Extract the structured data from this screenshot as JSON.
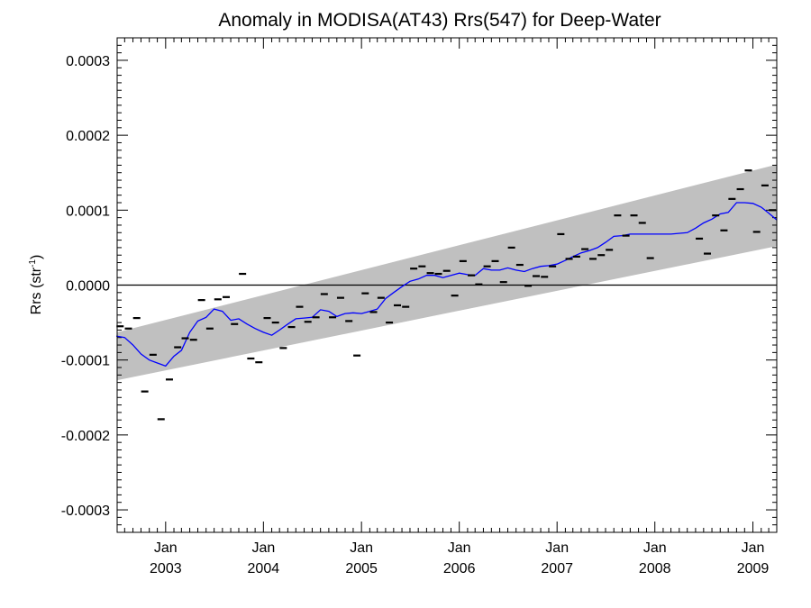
{
  "chart_data": {
    "type": "scatter",
    "title": "Anomaly in MODISA(AT43) Rrs(547) for Deep-Water",
    "xlabel": "",
    "ylabel": {
      "main": "Rrs (str",
      "superscript": "-1",
      "close": ")"
    },
    "x_axis": {
      "type": "time",
      "range": [
        "2002-07-04",
        "2009-03-31"
      ],
      "ticks": [
        {
          "date": "2003-01-01",
          "month": "Jan",
          "year": "2003"
        },
        {
          "date": "2004-01-01",
          "month": "Jan",
          "year": "2004"
        },
        {
          "date": "2005-01-01",
          "month": "Jan",
          "year": "2005"
        },
        {
          "date": "2006-01-01",
          "month": "Jan",
          "year": "2006"
        },
        {
          "date": "2007-01-01",
          "month": "Jan",
          "year": "2007"
        },
        {
          "date": "2008-01-01",
          "month": "Jan",
          "year": "2008"
        },
        {
          "date": "2009-01-01",
          "month": "Jan",
          "year": "2009"
        }
      ]
    },
    "y_axis": {
      "range": [
        -0.00033,
        0.00033
      ],
      "ticks": [
        {
          "value": 0.0003,
          "label": "0.0003"
        },
        {
          "value": 0.0002,
          "label": "0.0002"
        },
        {
          "value": 0.0001,
          "label": "0.0001"
        },
        {
          "value": 0.0,
          "label": "0.0000"
        },
        {
          "value": -0.0001,
          "label": "-0.0001"
        },
        {
          "value": -0.0002,
          "label": "-0.0002"
        },
        {
          "value": -0.0003,
          "label": "-0.0003"
        }
      ],
      "minor_step": 1e-05
    },
    "zero_line": 0.0,
    "trend_band": {
      "start": {
        "date": "2002-07-04",
        "lower": -0.000127,
        "upper": -6.3e-05
      },
      "end": {
        "date": "2009-03-31",
        "lower": 5.2e-05,
        "upper": 0.000161
      }
    },
    "series": [
      {
        "kind": "monthly_anomaly",
        "color": "#000000",
        "points": [
          [
            "2002-07-15",
            -5.5e-05
          ],
          [
            "2002-08-15",
            -5.8e-05
          ],
          [
            "2002-09-15",
            -4.4e-05
          ],
          [
            "2002-10-15",
            -0.000142
          ],
          [
            "2002-11-15",
            -9.3e-05
          ],
          [
            "2002-12-15",
            -0.000179
          ],
          [
            "2003-01-15",
            -0.000126
          ],
          [
            "2003-02-15",
            -8.3e-05
          ],
          [
            "2003-03-15",
            -7.1e-05
          ],
          [
            "2003-04-15",
            -7.3e-05
          ],
          [
            "2003-05-15",
            -2e-05
          ],
          [
            "2003-06-15",
            -5.8e-05
          ],
          [
            "2003-07-15",
            -1.9e-05
          ],
          [
            "2003-08-15",
            -1.6e-05
          ],
          [
            "2003-09-15",
            -5.2e-05
          ],
          [
            "2003-10-15",
            1.5e-05
          ],
          [
            "2003-11-15",
            -9.8e-05
          ],
          [
            "2003-12-15",
            -0.000103
          ],
          [
            "2004-01-15",
            -4.4e-05
          ],
          [
            "2004-02-15",
            -5e-05
          ],
          [
            "2004-03-15",
            -8.4e-05
          ],
          [
            "2004-04-15",
            -5.6e-05
          ],
          [
            "2004-05-15",
            -2.9e-05
          ],
          [
            "2004-06-15",
            -4.9e-05
          ],
          [
            "2004-07-15",
            -4.3e-05
          ],
          [
            "2004-08-15",
            -1.2e-05
          ],
          [
            "2004-09-15",
            -4.3e-05
          ],
          [
            "2004-10-15",
            -1.7e-05
          ],
          [
            "2004-11-15",
            -4.8e-05
          ],
          [
            "2004-12-15",
            -9.4e-05
          ],
          [
            "2005-01-15",
            -1.1e-05
          ],
          [
            "2005-02-15",
            -3.6e-05
          ],
          [
            "2005-03-15",
            -1.7e-05
          ],
          [
            "2005-04-15",
            -5e-05
          ],
          [
            "2005-05-15",
            -2.7e-05
          ],
          [
            "2005-06-15",
            -2.9e-05
          ],
          [
            "2005-07-15",
            2.2e-05
          ],
          [
            "2005-08-15",
            2.5e-05
          ],
          [
            "2005-09-15",
            1.6e-05
          ],
          [
            "2005-10-15",
            1.5e-05
          ],
          [
            "2005-11-15",
            1.9e-05
          ],
          [
            "2005-12-15",
            -1.4e-05
          ],
          [
            "2006-01-15",
            3.2e-05
          ],
          [
            "2006-02-15",
            1.3e-05
          ],
          [
            "2006-03-15",
            1e-06
          ],
          [
            "2006-04-15",
            2.5e-05
          ],
          [
            "2006-05-15",
            3.2e-05
          ],
          [
            "2006-06-15",
            4e-06
          ],
          [
            "2006-07-15",
            5e-05
          ],
          [
            "2006-08-15",
            2.7e-05
          ],
          [
            "2006-09-15",
            -1e-06
          ],
          [
            "2006-10-15",
            1.2e-05
          ],
          [
            "2006-11-15",
            1.1e-05
          ],
          [
            "2006-12-15",
            2.5e-05
          ],
          [
            "2007-01-15",
            6.8e-05
          ],
          [
            "2007-02-15",
            3.5e-05
          ],
          [
            "2007-03-15",
            3.8e-05
          ],
          [
            "2007-04-15",
            4.8e-05
          ],
          [
            "2007-05-15",
            3.5e-05
          ],
          [
            "2007-06-15",
            4e-05
          ],
          [
            "2007-07-15",
            4.7e-05
          ],
          [
            "2007-08-15",
            9.3e-05
          ],
          [
            "2007-09-15",
            6.6e-05
          ],
          [
            "2007-10-15",
            9.3e-05
          ],
          [
            "2007-11-15",
            8.3e-05
          ],
          [
            "2007-12-15",
            3.6e-05
          ],
          [
            "2008-06-15",
            6.2e-05
          ],
          [
            "2008-07-15",
            4.2e-05
          ],
          [
            "2008-08-15",
            9.3e-05
          ],
          [
            "2008-09-15",
            7.3e-05
          ],
          [
            "2008-10-15",
            0.000115
          ],
          [
            "2008-11-15",
            0.000128
          ],
          [
            "2008-12-15",
            0.000153
          ],
          [
            "2009-01-15",
            7.1e-05
          ],
          [
            "2009-02-15",
            0.000133
          ],
          [
            "2009-03-15",
            0.0001
          ],
          [
            "2009-04-15",
            7e-05
          ]
        ]
      },
      {
        "kind": "running_mean",
        "color": "#0000ff",
        "points": [
          [
            "2002-07-01",
            -6.8e-05
          ],
          [
            "2002-08-01",
            -7e-05
          ],
          [
            "2002-09-01",
            -8e-05
          ],
          [
            "2002-10-01",
            -9.2e-05
          ],
          [
            "2002-11-01",
            -0.0001
          ],
          [
            "2002-12-01",
            -0.000104
          ],
          [
            "2003-01-01",
            -0.000108
          ],
          [
            "2003-02-01",
            -9.5e-05
          ],
          [
            "2003-03-01",
            -8.7e-05
          ],
          [
            "2003-04-01",
            -6.3e-05
          ],
          [
            "2003-05-01",
            -4.8e-05
          ],
          [
            "2003-06-01",
            -4.3e-05
          ],
          [
            "2003-07-01",
            -3.2e-05
          ],
          [
            "2003-08-01",
            -3.5e-05
          ],
          [
            "2003-09-01",
            -4.7e-05
          ],
          [
            "2003-10-01",
            -4.5e-05
          ],
          [
            "2003-11-01",
            -5.2e-05
          ],
          [
            "2003-12-01",
            -5.8e-05
          ],
          [
            "2004-01-01",
            -6.3e-05
          ],
          [
            "2004-02-01",
            -6.7e-05
          ],
          [
            "2004-03-01",
            -6e-05
          ],
          [
            "2004-04-01",
            -5.2e-05
          ],
          [
            "2004-05-01",
            -4.5e-05
          ],
          [
            "2004-06-01",
            -4.4e-05
          ],
          [
            "2004-07-01",
            -4.3e-05
          ],
          [
            "2004-08-01",
            -3.3e-05
          ],
          [
            "2004-09-01",
            -3.5e-05
          ],
          [
            "2004-10-01",
            -4.2e-05
          ],
          [
            "2004-11-01",
            -3.8e-05
          ],
          [
            "2004-12-01",
            -3.7e-05
          ],
          [
            "2005-01-01",
            -3.8e-05
          ],
          [
            "2005-02-01",
            -3.5e-05
          ],
          [
            "2005-03-01",
            -3.2e-05
          ],
          [
            "2005-04-01",
            -1.8e-05
          ],
          [
            "2005-05-01",
            -1e-05
          ],
          [
            "2005-06-01",
            -2e-06
          ],
          [
            "2005-07-01",
            5e-06
          ],
          [
            "2005-08-01",
            8e-06
          ],
          [
            "2005-09-01",
            1.3e-05
          ],
          [
            "2005-10-01",
            1.3e-05
          ],
          [
            "2005-11-01",
            1e-05
          ],
          [
            "2005-12-01",
            1.3e-05
          ],
          [
            "2006-01-01",
            1.6e-05
          ],
          [
            "2006-02-01",
            1.4e-05
          ],
          [
            "2006-03-01",
            1.3e-05
          ],
          [
            "2006-04-01",
            2.2e-05
          ],
          [
            "2006-05-01",
            2e-05
          ],
          [
            "2006-06-01",
            2e-05
          ],
          [
            "2006-07-01",
            2.3e-05
          ],
          [
            "2006-08-01",
            2e-05
          ],
          [
            "2006-09-01",
            1.8e-05
          ],
          [
            "2006-10-01",
            2.2e-05
          ],
          [
            "2006-11-01",
            2.5e-05
          ],
          [
            "2006-12-01",
            2.6e-05
          ],
          [
            "2007-01-01",
            2.8e-05
          ],
          [
            "2007-02-01",
            3.3e-05
          ],
          [
            "2007-03-01",
            3.8e-05
          ],
          [
            "2007-04-01",
            4.3e-05
          ],
          [
            "2007-05-01",
            4.6e-05
          ],
          [
            "2007-06-01",
            5e-05
          ],
          [
            "2007-07-01",
            5.7e-05
          ],
          [
            "2007-08-01",
            6.5e-05
          ],
          [
            "2007-09-01",
            6.6e-05
          ],
          [
            "2007-10-01",
            6.8e-05
          ],
          [
            "2007-11-01",
            6.8e-05
          ],
          [
            "2007-12-01",
            6.8e-05
          ],
          [
            "2008-03-01",
            6.8e-05
          ],
          [
            "2008-05-01",
            7e-05
          ],
          [
            "2008-06-01",
            7.6e-05
          ],
          [
            "2008-07-01",
            8.3e-05
          ],
          [
            "2008-08-01",
            8.8e-05
          ],
          [
            "2008-09-01",
            9.5e-05
          ],
          [
            "2008-10-01",
            9.7e-05
          ],
          [
            "2008-11-01",
            0.00011
          ],
          [
            "2008-12-01",
            0.00011
          ],
          [
            "2009-01-01",
            0.000109
          ],
          [
            "2009-02-01",
            0.000104
          ],
          [
            "2009-03-01",
            9.6e-05
          ],
          [
            "2009-03-31",
            8.7e-05
          ]
        ]
      }
    ],
    "grid": false,
    "legend": "none"
  }
}
